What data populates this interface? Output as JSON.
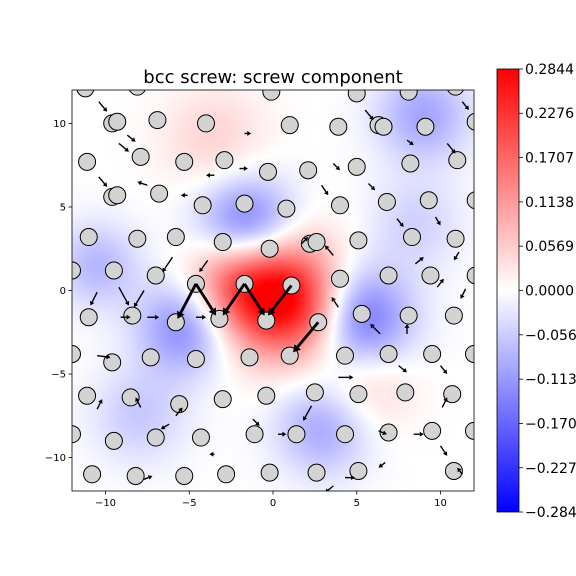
{
  "chart_data": {
    "type": "heatmap",
    "title": "bcc screw: screw component",
    "xlim": [
      -12,
      12
    ],
    "ylim": [
      -12,
      12
    ],
    "xticks": [
      -10,
      -5,
      0,
      5,
      10
    ],
    "xtick_labels": [
      "−10",
      "−5",
      "0",
      "5",
      "10"
    ],
    "yticks": [
      10,
      5,
      0,
      -5,
      -10
    ],
    "ytick_labels": [
      "10",
      "5",
      "0",
      "−5",
      "−10"
    ],
    "colormap": "bwr",
    "colors": {
      "negative": "#0000ff",
      "zero": "#ffffff",
      "positive": "#ff0000",
      "atom_fill": "#d3d3d3",
      "atom_edge": "#000000",
      "arrow": "#000000"
    },
    "colorbar": {
      "vmin": -0.2844,
      "vmax": 0.2844,
      "tick_values": [
        0.2844,
        0.2276,
        0.1707,
        0.1138,
        0.0569,
        0.0,
        -0.0569,
        -0.1138,
        -0.1707,
        -0.2276,
        -0.2844
      ],
      "tick_labels": [
        "0.2844",
        "0.2276",
        "0.1707",
        "0.1138",
        "0.0569",
        "0.0000",
        "−0.0569",
        "−0.1138",
        "−0.1707",
        "−0.2276",
        "−0.2844"
      ]
    },
    "field_sources": [
      {
        "x": 0.0,
        "y": 0.0,
        "w": 0.27,
        "s": 2.6
      },
      {
        "x": -2.5,
        "y": 0.8,
        "w": 0.1,
        "s": 2.0
      },
      {
        "x": 2.2,
        "y": -1.5,
        "w": 0.1,
        "s": 2.0
      },
      {
        "x": -1.5,
        "y": 3.6,
        "w": -0.2,
        "s": 2.1
      },
      {
        "x": 5.0,
        "y": -1.8,
        "w": -0.19,
        "s": 2.2
      },
      {
        "x": -5.2,
        "y": -2.2,
        "w": -0.14,
        "s": 2.0
      },
      {
        "x": 3.0,
        "y": -8.2,
        "w": -0.1,
        "s": 2.0
      },
      {
        "x": -10.5,
        "y": 1.5,
        "w": -0.08,
        "s": 1.8
      },
      {
        "x": 9.0,
        "y": 10.5,
        "w": -0.1,
        "s": 2.0
      },
      {
        "x": -3.5,
        "y": 9.0,
        "w": 0.05,
        "s": 2.2
      },
      {
        "x": 5.5,
        "y": -5.5,
        "w": 0.07,
        "s": 2.0
      },
      {
        "x": -8.0,
        "y": -7.5,
        "w": -0.06,
        "s": 2.0
      },
      {
        "x": 8.5,
        "y": 4.0,
        "w": -0.05,
        "s": 2.0
      }
    ],
    "atoms": [
      [
        -11.2,
        12.1
      ],
      [
        -8.1,
        12.2
      ],
      [
        -0.1,
        11.9
      ],
      [
        5.0,
        11.8
      ],
      [
        8.1,
        11.9
      ],
      [
        10.9,
        12.2
      ],
      [
        -9.6,
        10.0
      ],
      [
        -9.3,
        10.1
      ],
      [
        -6.9,
        10.2
      ],
      [
        -4.0,
        10.0
      ],
      [
        1.0,
        9.9
      ],
      [
        3.9,
        9.8
      ],
      [
        6.3,
        9.9
      ],
      [
        6.6,
        9.8
      ],
      [
        9.1,
        9.8
      ],
      [
        12.1,
        10.1
      ],
      [
        -7.9,
        8.0
      ],
      [
        -11.1,
        7.7
      ],
      [
        -5.3,
        7.7
      ],
      [
        -2.9,
        7.8
      ],
      [
        2.1,
        7.2
      ],
      [
        -0.3,
        7.1
      ],
      [
        5.0,
        7.4
      ],
      [
        8.2,
        7.6
      ],
      [
        11.0,
        7.8
      ],
      [
        -9.6,
        5.6
      ],
      [
        -9.3,
        5.7
      ],
      [
        -6.8,
        5.8
      ],
      [
        -4.2,
        5.1
      ],
      [
        -1.7,
        5.2
      ],
      [
        0.8,
        4.9
      ],
      [
        4.0,
        5.1
      ],
      [
        6.8,
        5.3
      ],
      [
        9.3,
        5.4
      ],
      [
        12.1,
        5.4
      ],
      [
        -11.0,
        3.2
      ],
      [
        -8.1,
        3.1
      ],
      [
        -5.8,
        3.2
      ],
      [
        -3.0,
        2.9
      ],
      [
        -0.2,
        2.5
      ],
      [
        2.2,
        2.8
      ],
      [
        2.6,
        2.9
      ],
      [
        5.1,
        3.0
      ],
      [
        8.3,
        3.2
      ],
      [
        10.9,
        3.1
      ],
      [
        -12.0,
        1.2
      ],
      [
        -9.5,
        1.2
      ],
      [
        -7.0,
        0.9
      ],
      [
        -4.6,
        0.4
      ],
      [
        -1.7,
        0.4
      ],
      [
        1.1,
        0.3
      ],
      [
        4.0,
        0.7
      ],
      [
        6.9,
        0.9
      ],
      [
        9.4,
        0.9
      ],
      [
        12.1,
        0.9
      ],
      [
        -11.0,
        -1.6
      ],
      [
        -8.4,
        -1.5
      ],
      [
        -5.8,
        -1.9
      ],
      [
        -3.2,
        -1.7
      ],
      [
        -0.4,
        -1.8
      ],
      [
        2.7,
        -1.9
      ],
      [
        5.3,
        -1.4
      ],
      [
        8.1,
        -1.5
      ],
      [
        10.8,
        -1.5
      ],
      [
        -12.0,
        -3.8
      ],
      [
        -9.6,
        -4.3
      ],
      [
        -7.3,
        -4.0
      ],
      [
        -4.6,
        -4.1
      ],
      [
        -1.4,
        -4.0
      ],
      [
        1.0,
        -3.9
      ],
      [
        4.3,
        -3.9
      ],
      [
        6.9,
        -3.8
      ],
      [
        9.5,
        -3.8
      ],
      [
        12.0,
        -3.8
      ],
      [
        -11.1,
        -6.3
      ],
      [
        -8.5,
        -6.4
      ],
      [
        -5.6,
        -6.8
      ],
      [
        -3.0,
        -6.5
      ],
      [
        -0.4,
        -6.3
      ],
      [
        2.5,
        -6.1
      ],
      [
        5.1,
        -6.2
      ],
      [
        7.9,
        -6.1
      ],
      [
        10.7,
        -6.2
      ],
      [
        -12.0,
        -8.6
      ],
      [
        -9.5,
        -9.0
      ],
      [
        -7.0,
        -8.8
      ],
      [
        -4.3,
        -8.8
      ],
      [
        -1.1,
        -8.6
      ],
      [
        1.4,
        -8.6
      ],
      [
        4.3,
        -8.6
      ],
      [
        6.9,
        -8.5
      ],
      [
        9.5,
        -8.4
      ],
      [
        12.0,
        -8.4
      ],
      [
        -10.8,
        -11.0
      ],
      [
        -8.2,
        -11.1
      ],
      [
        -5.3,
        -11.1
      ],
      [
        -2.8,
        -11.0
      ],
      [
        -0.2,
        -10.9
      ],
      [
        2.6,
        -10.9
      ],
      [
        5.1,
        -10.8
      ],
      [
        10.8,
        -10.8
      ]
    ],
    "arrows": [
      {
        "x": -4.6,
        "y": 0.4,
        "dx": -1.1,
        "dy": -2.1
      },
      {
        "x": -4.6,
        "y": 0.4,
        "dx": 1.2,
        "dy": -1.9
      },
      {
        "x": -1.7,
        "y": 0.4,
        "dx": -1.3,
        "dy": -1.9
      },
      {
        "x": -1.7,
        "y": 0.4,
        "dx": 1.2,
        "dy": -1.9
      },
      {
        "x": 1.1,
        "y": 0.3,
        "dx": -1.4,
        "dy": -1.8
      },
      {
        "x": 2.7,
        "y": -1.9,
        "dx": -1.5,
        "dy": -1.8
      },
      {
        "x": -9.2,
        "y": 0.2,
        "dx": 0.6,
        "dy": -1.1
      },
      {
        "x": -7.7,
        "y": 0.0,
        "dx": -0.6,
        "dy": -1.0
      },
      {
        "x": -10.5,
        "y": -0.1,
        "dx": -0.4,
        "dy": -0.8
      },
      {
        "x": -6.0,
        "y": 2.0,
        "dx": -0.6,
        "dy": -0.9
      },
      {
        "x": -3.9,
        "y": 1.8,
        "dx": -0.5,
        "dy": -0.7
      },
      {
        "x": 3.6,
        "y": 2.1,
        "dx": -0.5,
        "dy": 0.6
      },
      {
        "x": 1.7,
        "y": 2.8,
        "dx": 0.4,
        "dy": 0.4
      },
      {
        "x": 3.9,
        "y": -5.2,
        "dx": 0.9,
        "dy": 0.0
      },
      {
        "x": 2.3,
        "y": -6.9,
        "dx": -0.5,
        "dy": -0.9
      },
      {
        "x": 7.5,
        "y": -4.5,
        "dx": 0.5,
        "dy": -0.4
      },
      {
        "x": -10.5,
        "y": -3.9,
        "dx": 0.8,
        "dy": -0.1
      },
      {
        "x": -7.5,
        "y": -1.6,
        "dx": 0.7,
        "dy": 0.0
      },
      {
        "x": -9.1,
        "y": -1.6,
        "dx": 0.6,
        "dy": 0.0
      },
      {
        "x": -4.6,
        "y": -1.6,
        "dx": 0.6,
        "dy": 0.0
      },
      {
        "x": 3.9,
        "y": -1.0,
        "dx": -0.4,
        "dy": 0.6
      },
      {
        "x": 6.4,
        "y": -2.6,
        "dx": -0.6,
        "dy": 0.6
      },
      {
        "x": 10.0,
        "y": -4.5,
        "dx": 0.4,
        "dy": -0.5
      },
      {
        "x": 10.1,
        "y": -7.0,
        "dx": 0.3,
        "dy": 0.6
      },
      {
        "x": 4.3,
        "y": -11.2,
        "dx": 0.6,
        "dy": 0.0
      },
      {
        "x": 8.4,
        "y": -8.6,
        "dx": 0.6,
        "dy": 0.0
      },
      {
        "x": 10.0,
        "y": -9.3,
        "dx": 0.4,
        "dy": -0.6
      },
      {
        "x": 3.6,
        "y": -11.7,
        "dx": -0.5,
        "dy": -0.4
      },
      {
        "x": -7.7,
        "y": -11.3,
        "dx": 0.5,
        "dy": 0.2
      },
      {
        "x": -6.2,
        "y": -8.0,
        "dx": -0.5,
        "dy": -0.3
      },
      {
        "x": -1.2,
        "y": -7.7,
        "dx": 0.4,
        "dy": -0.4
      },
      {
        "x": 0.3,
        "y": -8.6,
        "dx": 0.5,
        "dy": 0.0
      },
      {
        "x": -3.5,
        "y": -9.8,
        "dx": -0.3,
        "dy": 0.0
      },
      {
        "x": -10.5,
        "y": -7.1,
        "dx": 0.3,
        "dy": 0.6
      },
      {
        "x": -7.9,
        "y": -7.0,
        "dx": -0.3,
        "dy": 0.6
      },
      {
        "x": -5.8,
        "y": -7.5,
        "dx": 0.4,
        "dy": 0.5
      },
      {
        "x": 6.3,
        "y": -8.4,
        "dx": 0.5,
        "dy": -0.2
      },
      {
        "x": 6.7,
        "y": -10.3,
        "dx": -0.4,
        "dy": -0.3
      },
      {
        "x": 11.3,
        "y": -11.0,
        "dx": -0.3,
        "dy": 0.4
      },
      {
        "x": -10.4,
        "y": 11.3,
        "dx": 0.5,
        "dy": -0.6
      },
      {
        "x": -9.2,
        "y": 8.8,
        "dx": 0.6,
        "dy": -0.5
      },
      {
        "x": -7.5,
        "y": 6.3,
        "dx": -0.6,
        "dy": 0.2
      },
      {
        "x": -10.4,
        "y": 6.8,
        "dx": 0.5,
        "dy": -0.6
      },
      {
        "x": -8.7,
        "y": 9.3,
        "dx": 0.5,
        "dy": -0.4
      },
      {
        "x": -5.1,
        "y": 5.7,
        "dx": -0.4,
        "dy": 0.0
      },
      {
        "x": -3.5,
        "y": 6.9,
        "dx": -0.5,
        "dy": 0.0
      },
      {
        "x": -2.0,
        "y": 7.3,
        "dx": 0.5,
        "dy": 0.0
      },
      {
        "x": -1.7,
        "y": 9.4,
        "dx": 0.4,
        "dy": 0.0
      },
      {
        "x": 2.9,
        "y": 6.3,
        "dx": 0.4,
        "dy": -0.6
      },
      {
        "x": 3.6,
        "y": 7.6,
        "dx": 0.4,
        "dy": -0.4
      },
      {
        "x": 5.7,
        "y": 6.4,
        "dx": 0.4,
        "dy": -0.4
      },
      {
        "x": 7.4,
        "y": 4.3,
        "dx": 0.4,
        "dy": -0.5
      },
      {
        "x": 9.7,
        "y": 4.4,
        "dx": 0.3,
        "dy": -0.5
      },
      {
        "x": 8.0,
        "y": 9.0,
        "dx": 0.4,
        "dy": -0.3
      },
      {
        "x": 5.5,
        "y": 10.8,
        "dx": 0.5,
        "dy": -0.6
      },
      {
        "x": 10.4,
        "y": 8.8,
        "dx": 0.5,
        "dy": -0.6
      },
      {
        "x": 11.3,
        "y": 11.3,
        "dx": 0.4,
        "dy": -0.5
      },
      {
        "x": 11.1,
        "y": 2.3,
        "dx": -0.3,
        "dy": -0.5
      },
      {
        "x": 9.8,
        "y": 0.2,
        "dx": 0.4,
        "dy": 0.5
      },
      {
        "x": 11.5,
        "y": 0.1,
        "dx": -0.3,
        "dy": -0.6
      },
      {
        "x": 8.0,
        "y": -2.6,
        "dx": 0.0,
        "dy": 0.6
      },
      {
        "x": 8.5,
        "y": 1.6,
        "dx": 0.5,
        "dy": 0.4
      }
    ]
  }
}
